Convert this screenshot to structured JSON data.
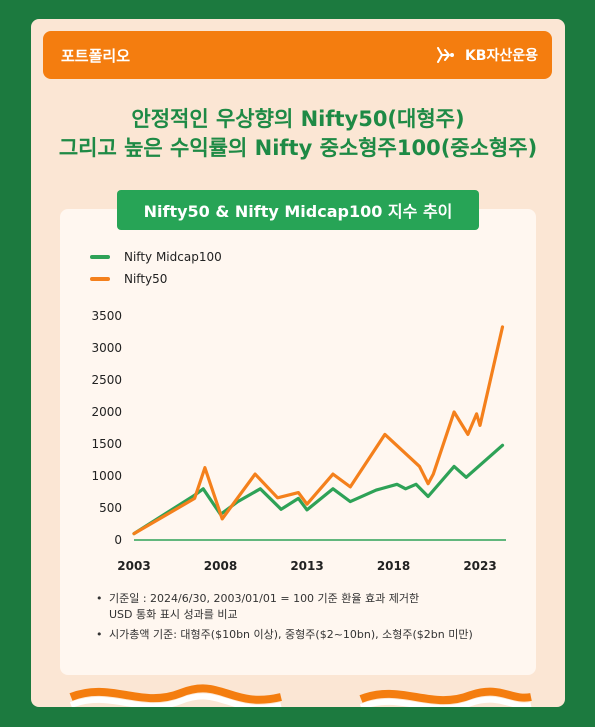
{
  "header": {
    "title": "포트폴리오",
    "brand": "KB자산운용"
  },
  "headline": {
    "line1": "안정적인 우상향의 Nifty50(대형주)",
    "line2": "그리고 높은 수익률의 Nifty 중소형주100(중소형주)"
  },
  "notes": [
    "기준일 : 2024/6/30, 2003/01/01 = 100 기준 환율 효과 제거한",
    "USD 통화 표시 성과를 비교",
    "시가총액 기준: 대형주($10bn 이상), 중형주($2~10bn), 소형주($2bn 미만)"
  ],
  "chart_data": {
    "type": "line",
    "title": "Nifty50 & Nifty Midcap100 지수 추이",
    "xlim": [
      2003,
      2024.5
    ],
    "ylim": [
      0,
      3500
    ],
    "yticks": [
      0,
      500,
      1000,
      1500,
      2000,
      2500,
      3000,
      3500
    ],
    "xticks": [
      2003,
      2008,
      2013,
      2018,
      2023
    ],
    "legend_position": "top-left",
    "grid": false,
    "series": [
      {
        "name": "Nifty Midcap100",
        "color": "#2ea257",
        "points": [
          [
            2003,
            100
          ],
          [
            2006.5,
            700
          ],
          [
            2007,
            800
          ],
          [
            2008,
            400
          ],
          [
            2009,
            600
          ],
          [
            2010.3,
            800
          ],
          [
            2011.5,
            480
          ],
          [
            2012.5,
            650
          ],
          [
            2013,
            470
          ],
          [
            2014.5,
            800
          ],
          [
            2015.5,
            600
          ],
          [
            2017,
            780
          ],
          [
            2018.2,
            870
          ],
          [
            2018.7,
            800
          ],
          [
            2019.3,
            870
          ],
          [
            2020,
            680
          ],
          [
            2021.5,
            1150
          ],
          [
            2022.2,
            980
          ],
          [
            2024.3,
            1480
          ]
        ]
      },
      {
        "name": "Nifty50",
        "color": "#f4801c",
        "points": [
          [
            2003,
            100
          ],
          [
            2006.5,
            650
          ],
          [
            2007.1,
            1130
          ],
          [
            2008.1,
            330
          ],
          [
            2010,
            1030
          ],
          [
            2011.3,
            660
          ],
          [
            2012.5,
            740
          ],
          [
            2013,
            560
          ],
          [
            2014.5,
            1030
          ],
          [
            2015.5,
            830
          ],
          [
            2017.5,
            1650
          ],
          [
            2019.5,
            1150
          ],
          [
            2020,
            880
          ],
          [
            2020.3,
            1030
          ],
          [
            2021.5,
            2000
          ],
          [
            2022.3,
            1650
          ],
          [
            2022.8,
            1970
          ],
          [
            2023,
            1790
          ],
          [
            2024.3,
            3330
          ]
        ]
      }
    ]
  }
}
